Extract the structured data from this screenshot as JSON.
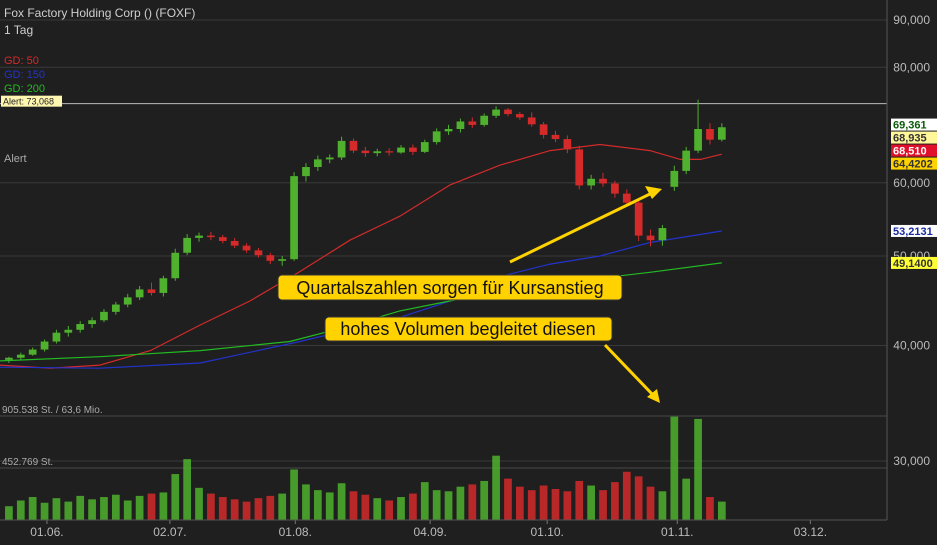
{
  "chart_data": {
    "type": "candlestick",
    "title": "Fox Factory Holding Corp () (FOXF)",
    "subtitle": "1 Tag",
    "up_color": "#4fb12e",
    "down_color": "#d42a2a",
    "log": true,
    "ylim": [
      25.9,
      94.6
    ],
    "yticks": [
      {
        "value": 30,
        "label": "30,000"
      },
      {
        "value": 40,
        "label": "40,000"
      },
      {
        "value": 50,
        "label": "50,000"
      },
      {
        "value": 60,
        "label": "60,000"
      },
      {
        "value": 80,
        "label": "80,000"
      },
      {
        "value": 90,
        "label": "90,000"
      }
    ],
    "xlim": [
      -0.5,
      148.8
    ],
    "xticks": [
      {
        "value": 7.4,
        "label": "01.06."
      },
      {
        "value": 28.1,
        "label": "02.07."
      },
      {
        "value": 49.2,
        "label": "01.08."
      },
      {
        "value": 71.9,
        "label": "04.09."
      },
      {
        "value": 91.6,
        "label": "01.10."
      },
      {
        "value": 113.5,
        "label": "01.11."
      },
      {
        "value": 135.9,
        "label": "03.12."
      }
    ],
    "x": [
      1,
      3,
      5,
      7,
      9,
      11,
      13,
      15,
      17,
      19,
      21,
      23,
      25,
      27,
      29,
      31,
      33,
      35,
      37,
      39,
      41,
      43,
      45,
      47,
      49,
      51,
      53,
      55,
      57,
      59,
      61,
      63,
      65,
      67,
      69,
      71,
      73,
      75,
      77,
      79,
      81,
      83,
      85,
      87,
      89,
      91,
      93,
      95,
      97,
      99,
      101,
      103,
      105,
      107,
      109,
      111,
      113,
      115,
      117,
      119,
      121
    ],
    "candles": [
      [
        38.6,
        38.9,
        38.3,
        38.8
      ],
      [
        38.8,
        39.3,
        38.6,
        39.1
      ],
      [
        39.1,
        39.8,
        39.0,
        39.6
      ],
      [
        39.6,
        40.6,
        39.4,
        40.4
      ],
      [
        40.4,
        41.6,
        40.2,
        41.3
      ],
      [
        41.3,
        42.0,
        40.9,
        41.6
      ],
      [
        41.6,
        42.5,
        41.3,
        42.2
      ],
      [
        42.2,
        42.9,
        41.8,
        42.6
      ],
      [
        42.6,
        43.8,
        42.4,
        43.5
      ],
      [
        43.5,
        44.6,
        43.2,
        44.3
      ],
      [
        44.3,
        45.5,
        44.0,
        45.1
      ],
      [
        45.1,
        46.4,
        44.8,
        46.0
      ],
      [
        46.0,
        46.8,
        45.3,
        45.6
      ],
      [
        45.6,
        47.6,
        45.2,
        47.3
      ],
      [
        47.3,
        50.9,
        47.0,
        50.4
      ],
      [
        50.4,
        52.8,
        50.1,
        52.3
      ],
      [
        52.3,
        53.0,
        51.8,
        52.6
      ],
      [
        52.6,
        53.1,
        52.0,
        52.4
      ],
      [
        52.4,
        52.7,
        51.6,
        51.9
      ],
      [
        51.9,
        52.3,
        51.0,
        51.3
      ],
      [
        51.3,
        51.6,
        50.4,
        50.7
      ],
      [
        50.7,
        51.0,
        49.8,
        50.1
      ],
      [
        50.1,
        50.4,
        49.0,
        49.4
      ],
      [
        49.4,
        50.0,
        48.8,
        49.6
      ],
      [
        49.6,
        61.6,
        49.4,
        61.0
      ],
      [
        61.0,
        63.0,
        60.2,
        62.4
      ],
      [
        62.4,
        64.2,
        61.8,
        63.6
      ],
      [
        63.6,
        64.4,
        63.0,
        63.9
      ],
      [
        63.9,
        67.3,
        63.5,
        66.6
      ],
      [
        66.6,
        67.0,
        64.6,
        65.0
      ],
      [
        65.0,
        65.6,
        64.0,
        64.6
      ],
      [
        64.6,
        65.3,
        64.1,
        64.9
      ],
      [
        64.9,
        65.4,
        64.2,
        64.7
      ],
      [
        64.7,
        65.9,
        64.5,
        65.5
      ],
      [
        65.5,
        66.0,
        64.3,
        64.8
      ],
      [
        64.8,
        66.8,
        64.6,
        66.4
      ],
      [
        66.4,
        68.7,
        66.0,
        68.2
      ],
      [
        68.2,
        69.3,
        67.6,
        68.6
      ],
      [
        68.6,
        70.4,
        68.0,
        69.9
      ],
      [
        69.9,
        70.6,
        68.8,
        69.3
      ],
      [
        69.3,
        71.3,
        69.0,
        70.9
      ],
      [
        70.9,
        72.6,
        70.5,
        72.0
      ],
      [
        72.0,
        72.3,
        70.8,
        71.2
      ],
      [
        71.2,
        71.6,
        70.2,
        70.6
      ],
      [
        70.6,
        71.5,
        69.0,
        69.4
      ],
      [
        69.4,
        69.8,
        67.0,
        67.6
      ],
      [
        67.6,
        68.3,
        66.4,
        66.9
      ],
      [
        66.9,
        67.5,
        64.6,
        65.2
      ],
      [
        65.2,
        65.8,
        59.0,
        59.6
      ],
      [
        59.6,
        61.2,
        59.0,
        60.6
      ],
      [
        60.6,
        61.5,
        59.4,
        59.9
      ],
      [
        59.9,
        60.3,
        57.8,
        58.4
      ],
      [
        58.4,
        59.0,
        56.6,
        57.1
      ],
      [
        57.1,
        57.6,
        51.9,
        52.6
      ],
      [
        52.6,
        53.4,
        51.2,
        52.0
      ],
      [
        52.0,
        54.0,
        51.3,
        53.6
      ],
      [
        59.4,
        62.6,
        58.8,
        61.8
      ],
      [
        61.8,
        65.6,
        61.3,
        65.0
      ],
      [
        65.0,
        73.8,
        64.6,
        68.6
      ],
      [
        68.6,
        69.6,
        66.0,
        66.8
      ],
      [
        66.8,
        69.6,
        66.5,
        68.9
      ]
    ],
    "volume": [
      120000,
      170000,
      200000,
      150000,
      190000,
      160000,
      210000,
      180000,
      200000,
      220000,
      170000,
      210000,
      230000,
      240000,
      400000,
      530000,
      280000,
      230000,
      200000,
      180000,
      160000,
      190000,
      210000,
      230000,
      440000,
      310000,
      260000,
      240000,
      320000,
      250000,
      220000,
      190000,
      170000,
      200000,
      230000,
      330000,
      260000,
      250000,
      290000,
      310000,
      340000,
      560000,
      360000,
      290000,
      260000,
      300000,
      270000,
      250000,
      340000,
      300000,
      260000,
      330000,
      420000,
      380000,
      290000,
      250000,
      900000,
      360000,
      880000,
      200000,
      160000
    ],
    "volume_ylim": [
      0,
      905538
    ],
    "volume_ticks": [
      {
        "value": 905538,
        "label": "905.538 St. / 63,6 Mio."
      },
      {
        "value": 452769,
        "label": "452.769 St."
      }
    ],
    "series": [
      {
        "name": "GD: 50",
        "color": "#d42a2a",
        "x": [
          -0.5,
          8,
          16.3,
          24.8,
          33.2,
          41.6,
          50,
          58.4,
          66.8,
          75.3,
          83.7,
          92.1,
          100.5,
          108.9,
          114,
          117.4,
          121
        ],
        "values": [
          38.1,
          37.8,
          38.1,
          39.5,
          42.1,
          44.7,
          48.1,
          52.0,
          55.2,
          59.7,
          62.7,
          65.0,
          66.0,
          65.0,
          63.6,
          63.6,
          64.4202
        ]
      },
      {
        "name": "GD: 150",
        "color": "#2233cc",
        "x": [
          -0.5,
          16.3,
          33.2,
          50,
          66.8,
          75.3,
          83.7,
          92.1,
          100.5,
          108.9,
          121
        ],
        "values": [
          37.9,
          37.8,
          38.3,
          40.4,
          42.9,
          44.7,
          47.5,
          49.0,
          50.0,
          51.7,
          53.2131
        ]
      },
      {
        "name": "GD: 200",
        "color": "#22bb22",
        "x": [
          -0.5,
          16.3,
          33.2,
          48.3,
          58.4,
          66.8,
          75.3,
          83.7,
          92.1,
          100.5,
          108.9,
          121
        ],
        "values": [
          38.5,
          38.9,
          39.5,
          40.4,
          42.0,
          43.6,
          44.7,
          45.7,
          46.6,
          47.3,
          48.0,
          49.14
        ]
      }
    ],
    "alert": {
      "value": 73.068,
      "label": "Alert: 73,068"
    },
    "alert_text": "Alert",
    "price_tags": [
      {
        "value": 69.361,
        "label": "69,361",
        "bg": "#ffffff",
        "fg": "#0a5a0a"
      },
      {
        "value": 68.935,
        "label": "68,935",
        "bg": "#fff799",
        "fg": "#333333"
      },
      {
        "value": 68.51,
        "label": "68,510",
        "bg": "#e0102a",
        "fg": "#ffffff"
      },
      {
        "value": 64.4202,
        "label": "64,4202",
        "bg": "#ffd200",
        "fg": "#333333"
      },
      {
        "value": 53.2131,
        "label": "53,2131",
        "bg": "#ffffff",
        "fg": "#1a2aa0"
      },
      {
        "value": 49.14,
        "label": "49,1400",
        "bg": "#ffff33",
        "fg": "#333333"
      }
    ],
    "annotations": [
      {
        "text": "Quartalszahlen sorgen für Kursanstieg"
      },
      {
        "text": "hohes Volumen begleitet diesen"
      }
    ]
  }
}
